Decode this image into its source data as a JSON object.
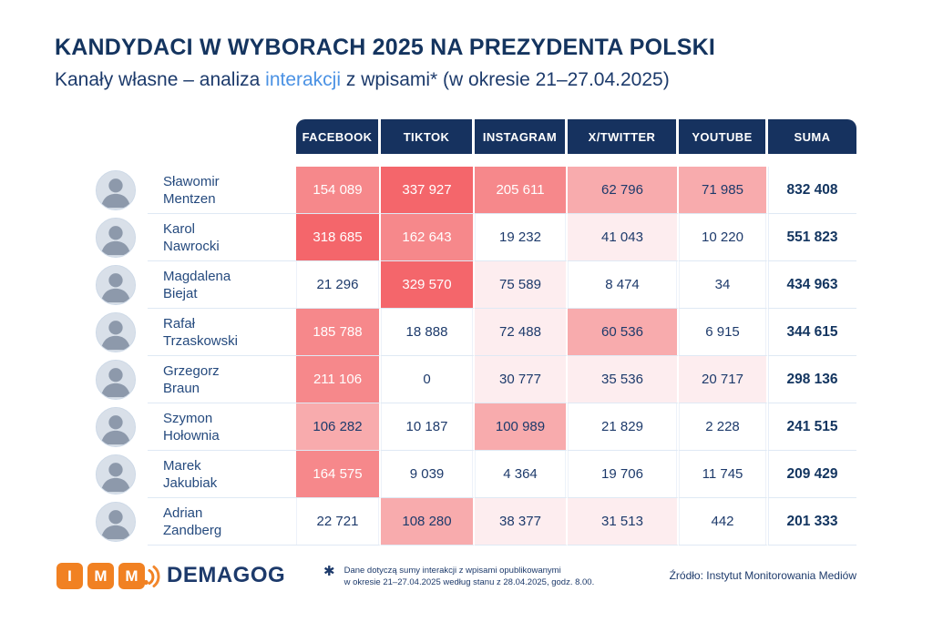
{
  "title": "KANDYDACI W WYBORACH 2025 NA PREZYDENTA POLSKI",
  "subtitle": {
    "pre": "Kanały własne – analiza ",
    "highlight": "interakcji",
    "post": " z wpisami* (w okresie 21–27.04.2025)"
  },
  "colors": {
    "navy": "#16325f",
    "text_navy": "#1d3a6b",
    "accent_blue": "#4b92e4",
    "orange": "#f18122",
    "heatmap_levels": [
      "#ffffff",
      "#fdedef",
      "#f8abad",
      "#f6888b",
      "#f4666b"
    ],
    "light_text_min_level": 3
  },
  "table": {
    "columns": [
      "FACEBOOK",
      "TIKTOK",
      "INSTAGRAM",
      "X/TWITTER",
      "YOUTUBE",
      "SUMA"
    ],
    "rows": [
      {
        "first": "Sławomir",
        "last": "Mentzen",
        "cells": [
          {
            "t": "154 089",
            "l": 3
          },
          {
            "t": "337 927",
            "l": 4
          },
          {
            "t": "205 611",
            "l": 3
          },
          {
            "t": "62 796",
            "l": 2
          },
          {
            "t": "71 985",
            "l": 2
          }
        ],
        "sum": "832 408"
      },
      {
        "first": "Karol",
        "last": "Nawrocki",
        "cells": [
          {
            "t": "318 685",
            "l": 4
          },
          {
            "t": "162 643",
            "l": 3
          },
          {
            "t": "19 232",
            "l": 0
          },
          {
            "t": "41 043",
            "l": 1
          },
          {
            "t": "10 220",
            "l": 0
          }
        ],
        "sum": "551 823"
      },
      {
        "first": "Magdalena",
        "last": "Biejat",
        "cells": [
          {
            "t": "21 296",
            "l": 0
          },
          {
            "t": "329 570",
            "l": 4
          },
          {
            "t": "75 589",
            "l": 1
          },
          {
            "t": "8 474",
            "l": 0
          },
          {
            "t": "34",
            "l": 0
          }
        ],
        "sum": "434 963"
      },
      {
        "first": "Rafał",
        "last": "Trzaskowski",
        "cells": [
          {
            "t": "185 788",
            "l": 3
          },
          {
            "t": "18 888",
            "l": 0
          },
          {
            "t": "72 488",
            "l": 1
          },
          {
            "t": "60 536",
            "l": 2
          },
          {
            "t": "6 915",
            "l": 0
          }
        ],
        "sum": "344 615"
      },
      {
        "first": "Grzegorz",
        "last": "Braun",
        "cells": [
          {
            "t": "211 106",
            "l": 3
          },
          {
            "t": "0",
            "l": 0
          },
          {
            "t": "30 777",
            "l": 1
          },
          {
            "t": "35 536",
            "l": 1
          },
          {
            "t": "20 717",
            "l": 1
          }
        ],
        "sum": "298 136"
      },
      {
        "first": "Szymon",
        "last": "Hołownia",
        "cells": [
          {
            "t": "106 282",
            "l": 2
          },
          {
            "t": "10 187",
            "l": 0
          },
          {
            "t": "100 989",
            "l": 2
          },
          {
            "t": "21 829",
            "l": 0
          },
          {
            "t": "2 228",
            "l": 0
          }
        ],
        "sum": "241 515"
      },
      {
        "first": "Marek",
        "last": "Jakubiak",
        "cells": [
          {
            "t": "164 575",
            "l": 3
          },
          {
            "t": "9 039",
            "l": 0
          },
          {
            "t": "4 364",
            "l": 0
          },
          {
            "t": "19 706",
            "l": 0
          },
          {
            "t": "11 745",
            "l": 0
          }
        ],
        "sum": "209 429"
      },
      {
        "first": "Adrian",
        "last": "Zandberg",
        "cells": [
          {
            "t": "22 721",
            "l": 0
          },
          {
            "t": "108 280",
            "l": 2
          },
          {
            "t": "38 377",
            "l": 1
          },
          {
            "t": "31 513",
            "l": 1
          },
          {
            "t": "442",
            "l": 0
          }
        ],
        "sum": "201 333"
      }
    ]
  },
  "footer": {
    "imm_letters": [
      "I",
      "M",
      "M"
    ],
    "demagog": "DEMAGOG",
    "footnote_mark": "✱",
    "footnote_line1": "Dane dotyczą sumy interakcji z wpisami opublikowanymi",
    "footnote_line2": "w okresie 21–27.04.2025 według stanu z 28.04.2025, godz. 8.00.",
    "source": "Źródło: Instytut Monitorowania Mediów"
  },
  "chart_data": {
    "type": "heatmap",
    "title": "KANDYDACI W WYBORACH 2025 NA PREZYDENTA POLSKI",
    "subtitle": "Kanały własne – analiza interakcji z wpisami* (w okresie 21–27.04.2025)",
    "columns": [
      "FACEBOOK",
      "TIKTOK",
      "INSTAGRAM",
      "X/TWITTER",
      "YOUTUBE"
    ],
    "rows": [
      "Sławomir Mentzen",
      "Karol Nawrocki",
      "Magdalena Biejat",
      "Rafał Trzaskowski",
      "Grzegorz Braun",
      "Szymon Hołownia",
      "Marek Jakubiak",
      "Adrian Zandberg"
    ],
    "values": [
      [
        154089,
        337927,
        205611,
        62796,
        71985
      ],
      [
        318685,
        162643,
        19232,
        41043,
        10220
      ],
      [
        21296,
        329570,
        75589,
        8474,
        34
      ],
      [
        185788,
        18888,
        72488,
        60536,
        6915
      ],
      [
        211106,
        0,
        30777,
        35536,
        20717
      ],
      [
        106282,
        10187,
        100989,
        21829,
        2228
      ],
      [
        164575,
        9039,
        4364,
        19706,
        11745
      ],
      [
        22721,
        108280,
        38377,
        31513,
        442
      ]
    ],
    "row_totals": [
      832408,
      551823,
      434963,
      344615,
      298136,
      241515,
      209429,
      201333
    ],
    "total_column_label": "SUMA",
    "color_scale": "white (low) → red #f4666b (high)"
  }
}
